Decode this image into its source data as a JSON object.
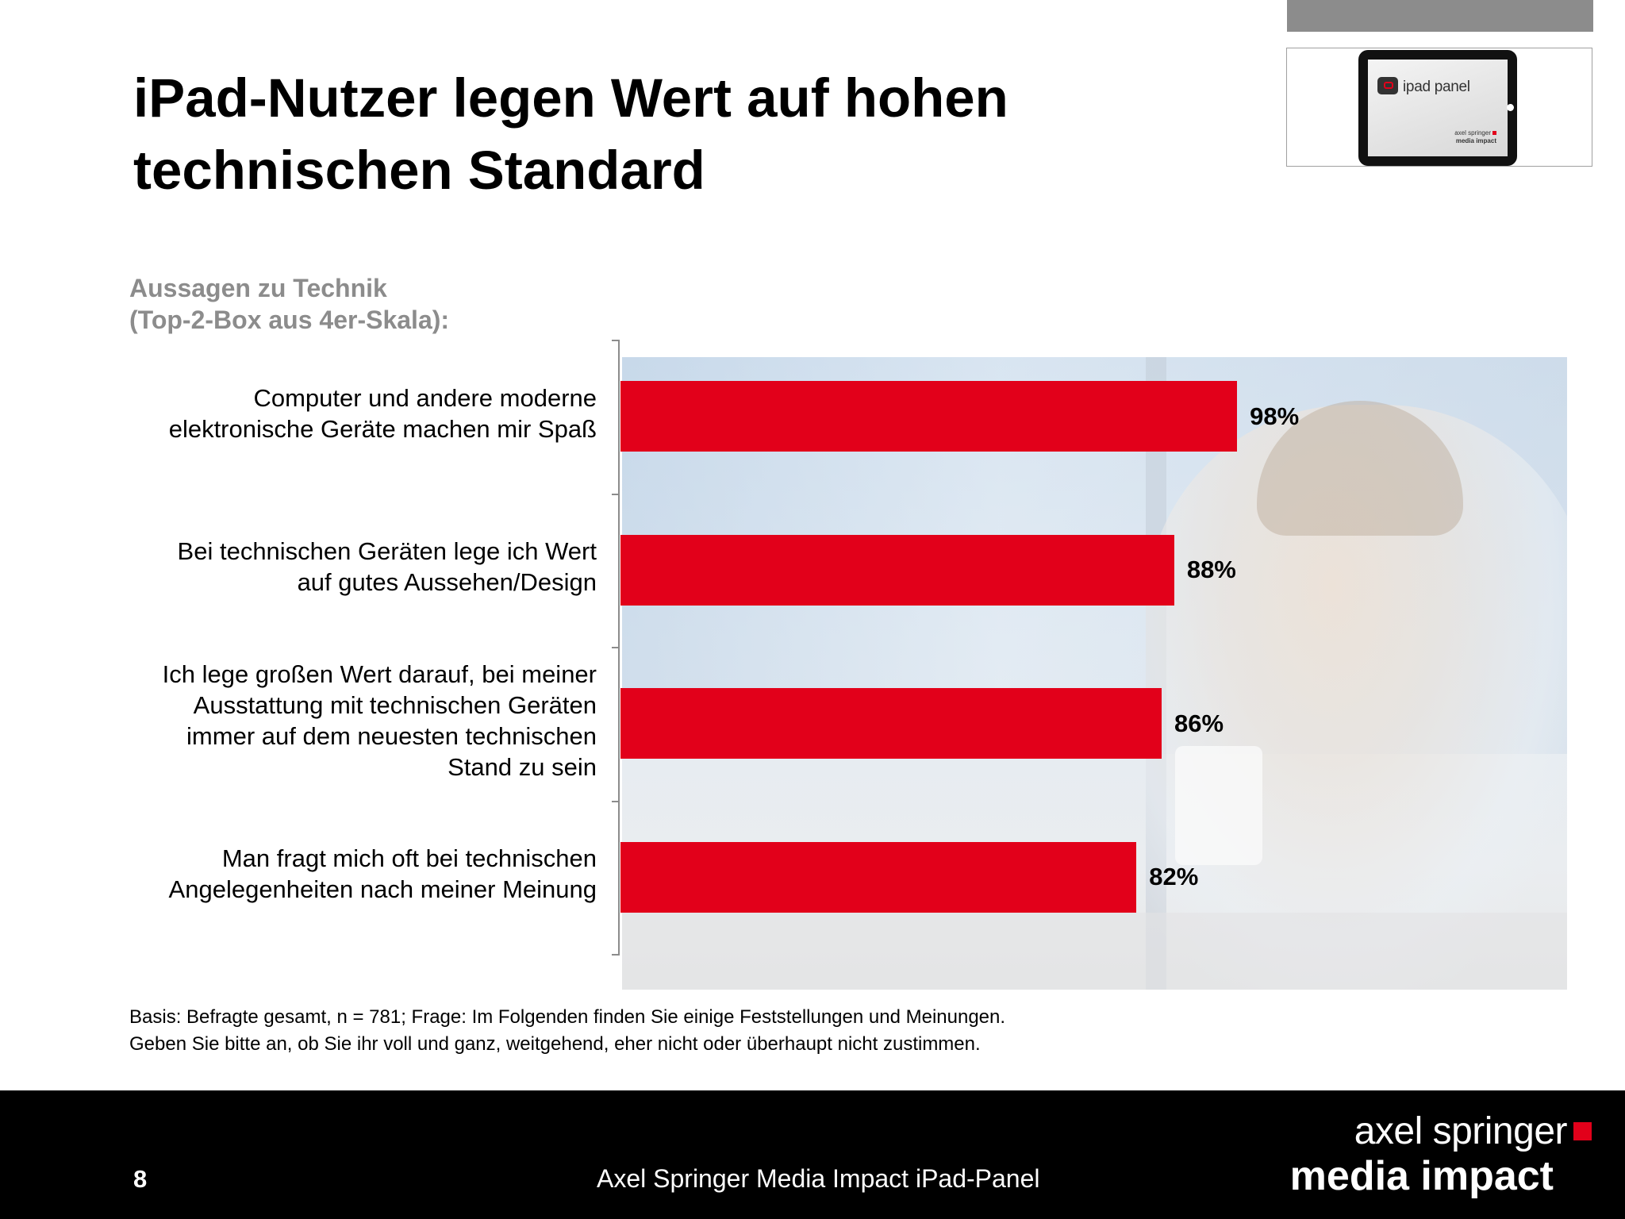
{
  "slide": {
    "title": "iPad-Nutzer legen Wert auf hohen technischen Standard",
    "subtitle_lines": [
      "Aussagen zu Technik",
      "(Top-2-Box aus 4er-Skala):"
    ],
    "note_lines": [
      "Basis: Befragte gesamt, n = 781; Frage: Im Folgenden finden Sie einige Feststellungen und Meinungen.",
      "Geben Sie bitte an, ob Sie ihr voll und ganz, weitgehend, eher nicht oder überhaupt nicht zustimmen."
    ],
    "page_number": "8",
    "footer_text": "Axel Springer Media Impact iPad-Panel"
  },
  "logo": {
    "panel_text": "ipad panel",
    "brand_line1": "axel springer",
    "brand_line2": "media impact"
  },
  "brand": {
    "line1": "axel springer",
    "line2": "media impact"
  },
  "colors": {
    "bar": "#e2001a",
    "subtitle": "#8c8c8c",
    "footer": "#000000"
  },
  "chart_data": {
    "type": "bar",
    "orientation": "horizontal",
    "title": "Aussagen zu Technik (Top-2-Box aus 4er-Skala):",
    "categories": [
      [
        "Computer und andere moderne",
        "elektronische Geräte machen mir Spaß"
      ],
      [
        "Bei technischen Geräten lege ich Wert",
        "auf gutes Aussehen/Design"
      ],
      [
        "Ich lege großen Wert darauf, bei meiner",
        "Ausstattung mit technischen Geräten",
        "immer auf dem neuesten technischen",
        "Stand zu sein"
      ],
      [
        "Man fragt mich oft bei technischen",
        "Angelegenheiten nach meiner Meinung"
      ]
    ],
    "values": [
      98,
      88,
      86,
      82
    ],
    "value_labels": [
      "98%",
      "88%",
      "86%",
      "82%"
    ],
    "unit": "%",
    "xlim": [
      0,
      100
    ],
    "grid": false,
    "legend": "none"
  }
}
